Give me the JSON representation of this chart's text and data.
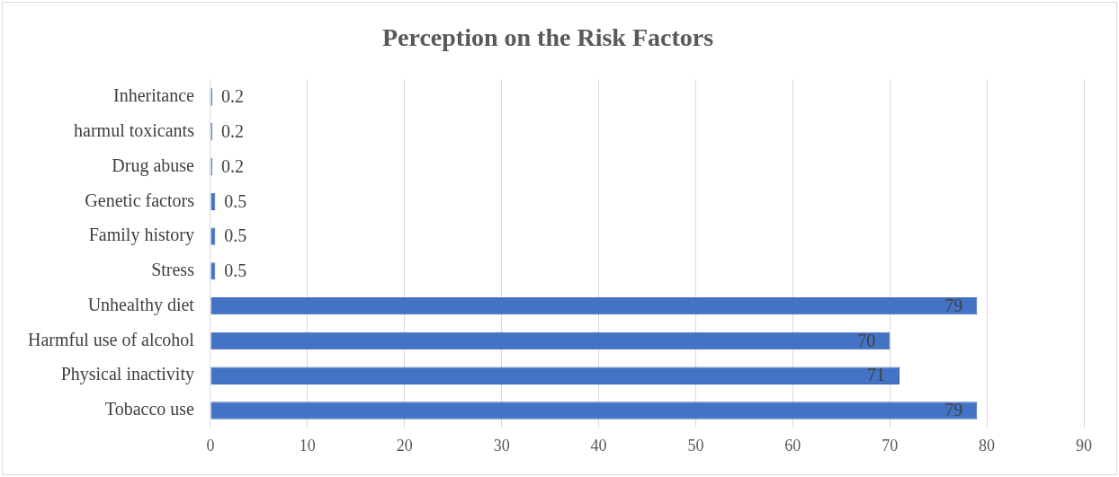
{
  "chart_data": {
    "type": "bar",
    "orientation": "horizontal",
    "title": "Perception on the Risk Factors",
    "categories": [
      "Inheritance",
      "harmul toxicants",
      "Drug abuse",
      "Genetic factors",
      "Family history",
      "Stress",
      "Unhealthy diet",
      "Harmful use of alcohol",
      "Physical inactivity",
      "Tobacco use"
    ],
    "values": [
      0.2,
      0.2,
      0.2,
      0.5,
      0.5,
      0.5,
      79,
      70,
      71,
      79
    ],
    "color": "#4472c4",
    "xlim": [
      0,
      90
    ],
    "xticks": [
      0,
      10,
      20,
      30,
      40,
      50,
      60,
      70,
      80,
      90
    ],
    "grid": "x",
    "data_labels": true
  }
}
